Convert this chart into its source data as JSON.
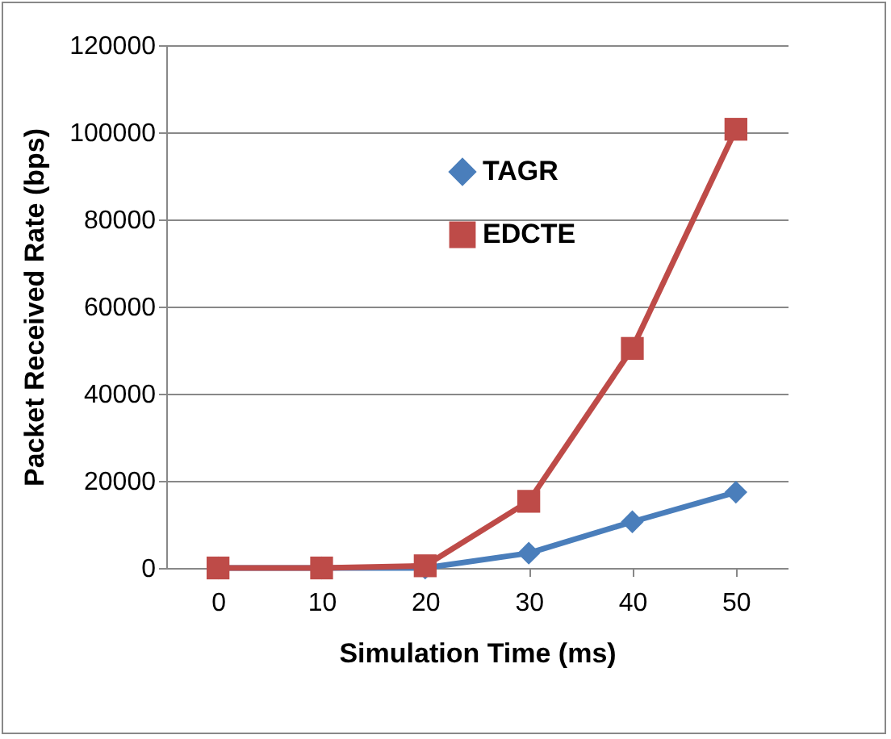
{
  "chart_data": {
    "type": "line",
    "xlabel": "Simulation Time (ms)",
    "ylabel": "Packet Received Rate (bps)",
    "categories": [
      "0",
      "10",
      "20",
      "30",
      "40",
      "50"
    ],
    "series": [
      {
        "name": "TAGR",
        "color": "#4a7ebb",
        "marker": "diamond",
        "values": [
          0,
          0,
          0,
          3400,
          10600,
          17400
        ]
      },
      {
        "name": "EDCTE",
        "color": "#be4b48",
        "marker": "square",
        "values": [
          0,
          0,
          500,
          15300,
          50400,
          100700
        ]
      }
    ],
    "ylim": [
      0,
      120000
    ],
    "yticks": [
      0,
      20000,
      40000,
      60000,
      80000,
      100000,
      120000
    ],
    "grid": "y",
    "legend": "top right"
  }
}
